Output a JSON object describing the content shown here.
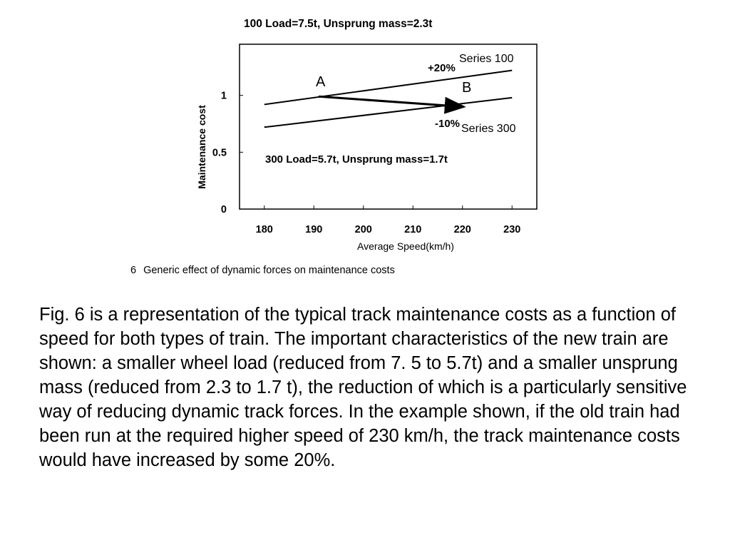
{
  "figure": {
    "top_note": "100  Load=7.5t, Unsprung mass=2.3t",
    "inner_note": "300  Load=5.7t, Unsprung mass=1.7t",
    "caption_number": "6",
    "caption_text": "Generic effect of dynamic forces on maintenance costs"
  },
  "chart_data": {
    "type": "line",
    "title": "",
    "xlabel": "Average Speed(km/h)",
    "ylabel": "Maintenance cost",
    "xlim": [
      175,
      235
    ],
    "ylim": [
      0,
      1.45
    ],
    "x_ticks": [
      "180",
      "190",
      "200",
      "210",
      "220",
      "230"
    ],
    "y_ticks": [
      "0",
      "0.5",
      "1"
    ],
    "grid": false,
    "series": [
      {
        "name": "Series 100",
        "x": [
          180,
          230
        ],
        "values": [
          0.92,
          1.22
        ]
      },
      {
        "name": "Series 300",
        "x": [
          180,
          230
        ],
        "values": [
          0.72,
          0.98
        ]
      }
    ],
    "points": [
      {
        "label": "A",
        "x": 191,
        "y": 0.99
      },
      {
        "label": "B",
        "x": 220,
        "y": 0.9
      }
    ],
    "annotations": [
      "+20%",
      "-10%"
    ],
    "arrow": {
      "from": "A",
      "to": "B"
    }
  },
  "body": {
    "paragraph": "Fig. 6 is a representation of the typical track maintenance costs as a function of speed for both types of train. The important characteristics of the new train are shown: a smaller wheel load (reduced from 7. 5 to 5.7t) and a smaller unsprung mass (reduced from 2.3 to 1.7 t), the reduction of which is a particularly sensitive way of reducing dynamic track forces. In the example shown, if the old train had been run at the required higher speed of 230 km/h, the track maintenance costs would have increased by some 20%."
  }
}
